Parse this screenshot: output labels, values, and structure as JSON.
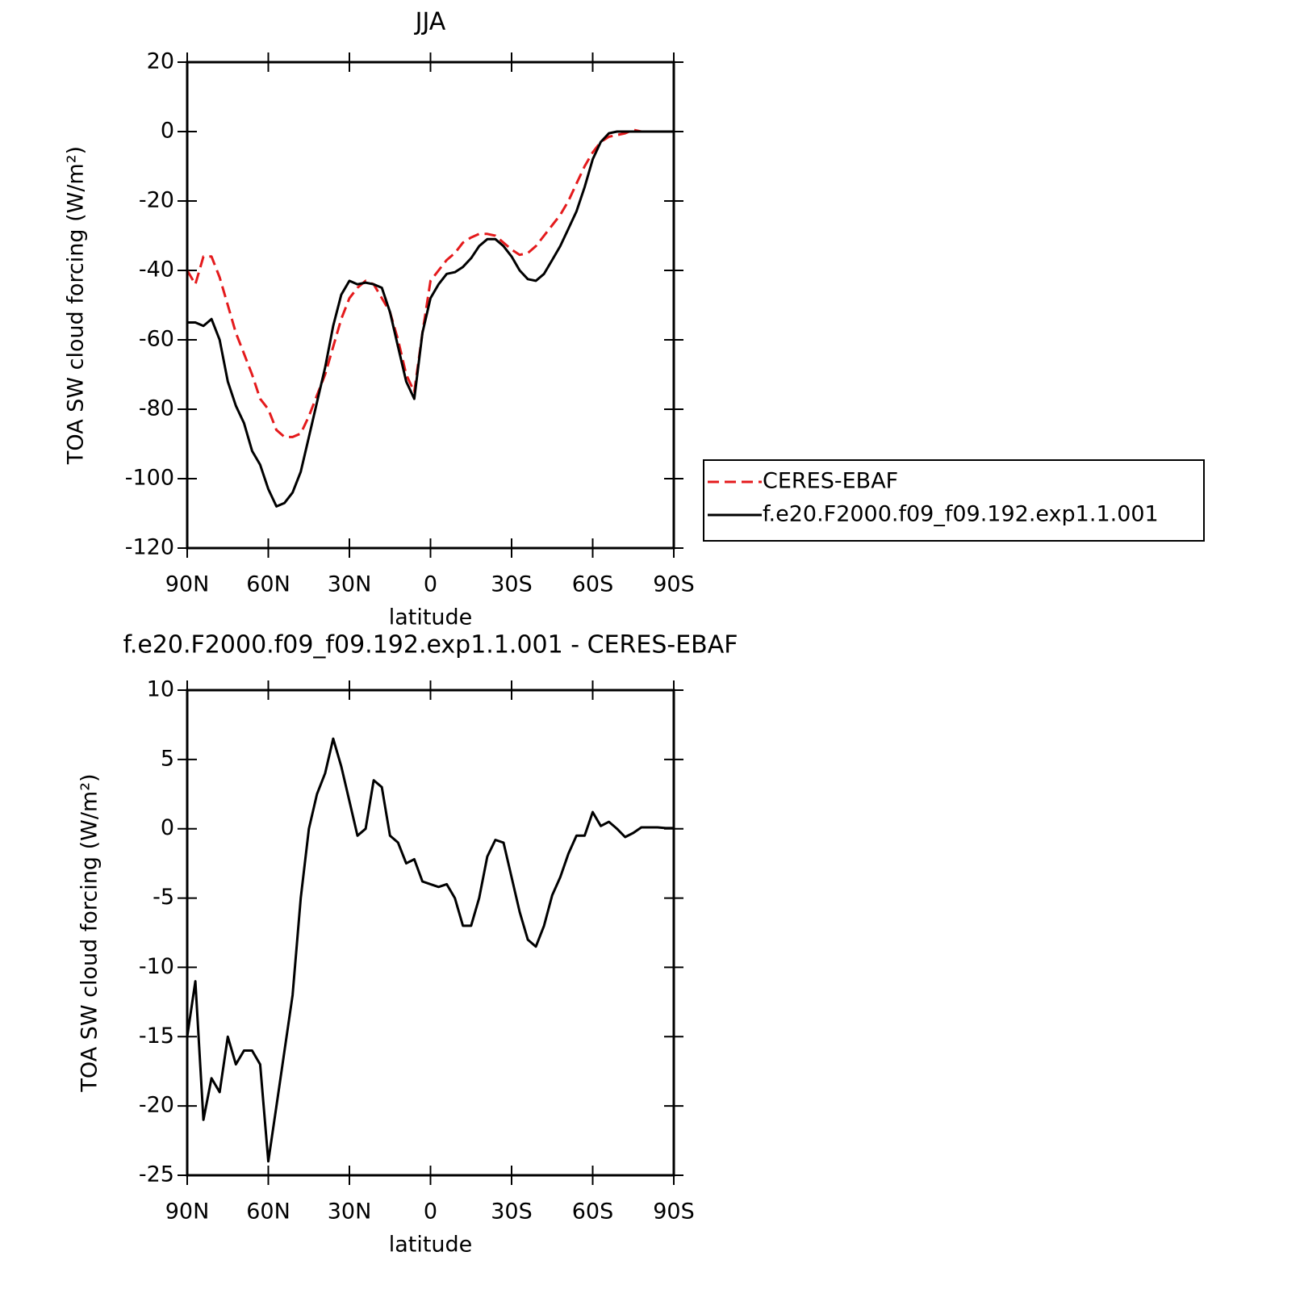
{
  "chart_data": [
    {
      "type": "line",
      "title": "JJA",
      "xlabel": "latitude",
      "ylabel": "TOA SW cloud forcing (W/m²)",
      "x": [
        90,
        87,
        84,
        81,
        78,
        75,
        72,
        69,
        66,
        63,
        60,
        57,
        54,
        51,
        48,
        45,
        42,
        39,
        36,
        33,
        30,
        27,
        24,
        21,
        18,
        15,
        12,
        9,
        6,
        3,
        0,
        -3,
        -6,
        -9,
        -12,
        -15,
        -18,
        -21,
        -24,
        -27,
        -30,
        -33,
        -36,
        -39,
        -42,
        -45,
        -48,
        -51,
        -54,
        -57,
        -60,
        -63,
        -66,
        -69,
        -72,
        -75,
        -78,
        -81,
        -84,
        -87,
        -90
      ],
      "series": [
        {
          "name": "CERES-EBAF",
          "color": "#e41a1c",
          "style": "dashed",
          "values": [
            -40,
            -44,
            -36,
            -36,
            -42,
            -50,
            -58,
            -64,
            -70,
            -77,
            -80,
            -86,
            -88,
            -88,
            -87,
            -82,
            -76,
            -70,
            -62,
            -54,
            -48,
            -45,
            -43,
            -44,
            -48,
            -52,
            -60,
            -70,
            -75,
            -58,
            -43,
            -40,
            -37,
            -35,
            -32,
            -30.5,
            -29.5,
            -29.5,
            -30,
            -32,
            -34,
            -35.5,
            -35,
            -33,
            -30,
            -27,
            -24,
            -20,
            -15,
            -10,
            -6,
            -3,
            -1.5,
            -1,
            -0.5,
            0.5,
            0,
            0,
            0,
            0,
            0
          ]
        },
        {
          "name": "f.e20.F2000.f09_f09.192.exp1.1.001",
          "color": "#000000",
          "style": "solid",
          "values": [
            -55,
            -55,
            -56,
            -54,
            -60,
            -72,
            -79,
            -84,
            -92,
            -96,
            -103,
            -108,
            -107,
            -104,
            -98,
            -88,
            -78,
            -68,
            -56,
            -47,
            -43,
            -44,
            -43.5,
            -44,
            -45,
            -52,
            -62,
            -72,
            -77,
            -58,
            -48,
            -44,
            -41,
            -40.5,
            -39,
            -36.5,
            -33,
            -31,
            -31,
            -33,
            -36,
            -40,
            -42.5,
            -43,
            -41,
            -37,
            -33,
            -28,
            -23,
            -16,
            -8,
            -3,
            -0.5,
            0,
            0,
            0,
            0,
            0,
            0,
            0,
            0
          ]
        }
      ],
      "xlim": [
        90,
        -90
      ],
      "xticks": [
        {
          "value": 90,
          "label": "90N"
        },
        {
          "value": 60,
          "label": "60N"
        },
        {
          "value": 30,
          "label": "30N"
        },
        0,
        {
          "value": -30,
          "label": "30S"
        },
        {
          "value": -60,
          "label": "60S"
        },
        {
          "value": -90,
          "label": "90S"
        }
      ],
      "ylim": [
        -120,
        20
      ],
      "yticks": [
        -120,
        -100,
        -80,
        -60,
        -40,
        -20,
        0,
        20
      ],
      "legend": "right"
    },
    {
      "type": "line",
      "title": "f.e20.F2000.f09_f09.192.exp1.1.001 - CERES-EBAF",
      "xlabel": "latitude",
      "ylabel": "TOA SW cloud forcing (W/m²)",
      "x": [
        90,
        87,
        84,
        81,
        78,
        75,
        72,
        69,
        66,
        63,
        60,
        57,
        54,
        51,
        48,
        45,
        42,
        39,
        36,
        33,
        30,
        27,
        24,
        21,
        18,
        15,
        12,
        9,
        6,
        3,
        0,
        -3,
        -6,
        -9,
        -12,
        -15,
        -18,
        -21,
        -24,
        -27,
        -30,
        -33,
        -36,
        -39,
        -42,
        -45,
        -48,
        -51,
        -54,
        -57,
        -60,
        -63,
        -66,
        -69,
        -72,
        -75,
        -78,
        -81,
        -84,
        -87,
        -90
      ],
      "color": "#000000",
      "values": [
        -15,
        -11,
        -21,
        -18,
        -19,
        -15,
        -17,
        -16,
        -16,
        -17,
        -24,
        -20,
        -16,
        -12,
        -5,
        0,
        2.5,
        4,
        6.5,
        4.5,
        2,
        -0.5,
        0,
        3.5,
        3,
        -0.5,
        -1,
        -2.5,
        -2.2,
        -3.8,
        -4,
        -4.2,
        -4,
        -5,
        -7,
        -7,
        -5,
        -2,
        -0.8,
        -1,
        -3.5,
        -6,
        -8,
        -8.5,
        -7,
        -4.8,
        -3.5,
        -1.8,
        -0.5,
        -0.5,
        1.2,
        0.2,
        0.5,
        0,
        -0.6,
        -0.3,
        0.1,
        0.1,
        0.1,
        0.05,
        0.05
      ],
      "xlim": [
        90,
        -90
      ],
      "xticks": [
        {
          "value": 90,
          "label": "90N"
        },
        {
          "value": 60,
          "label": "60N"
        },
        {
          "value": 30,
          "label": "30N"
        },
        0,
        {
          "value": -30,
          "label": "30S"
        },
        {
          "value": -60,
          "label": "60S"
        },
        {
          "value": -90,
          "label": "90S"
        }
      ],
      "ylim": [
        -25,
        10
      ],
      "yticks": [
        -25,
        -20,
        -15,
        -10,
        -5,
        0,
        5,
        10
      ]
    }
  ]
}
